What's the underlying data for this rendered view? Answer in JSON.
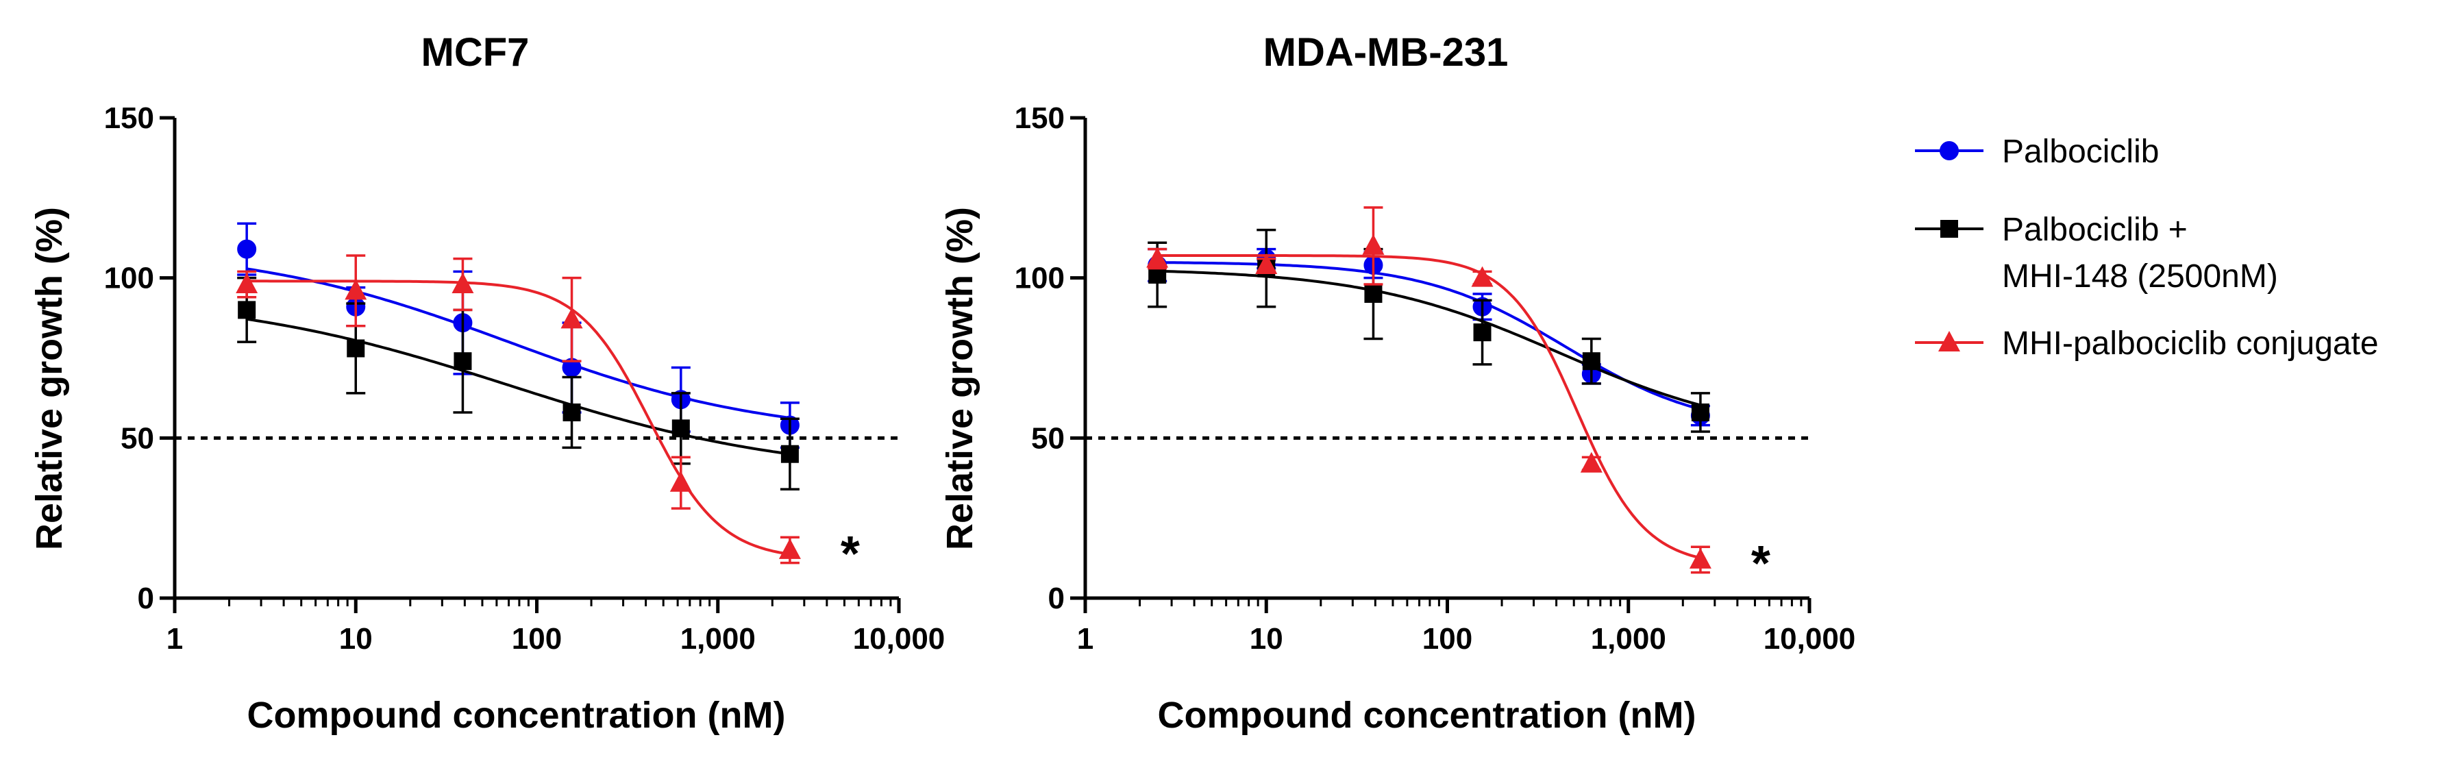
{
  "chart_data": [
    {
      "type": "line",
      "title": "MCF7",
      "xlabel": "Compound concentration (nM)",
      "ylabel": "Relative growth (%)",
      "xscale": "log",
      "xlim": [
        1,
        10000
      ],
      "ylim": [
        0,
        150
      ],
      "xticks": [
        1,
        10,
        100,
        1000,
        10000
      ],
      "xtick_labels": [
        "1",
        "10",
        "100",
        "1,000",
        "10,000"
      ],
      "yticks": [
        0,
        50,
        100,
        150
      ],
      "ytick_labels": [
        "0",
        "50",
        "100",
        "150"
      ],
      "reference_line": {
        "y": 50,
        "style": "dotted"
      },
      "annotation": {
        "text": "*",
        "x": 2500,
        "y": 15
      },
      "series": [
        {
          "name": "Palbociclib",
          "color": "#0000ee",
          "marker": "circle",
          "x": [
            2.5,
            10,
            39,
            156,
            625,
            2500
          ],
          "y": [
            109,
            91,
            86,
            72,
            62,
            54
          ],
          "err": [
            8,
            6,
            16,
            14,
            10,
            7
          ],
          "fit": {
            "top": 110,
            "bottom": 50,
            "ec50": 70,
            "hill": 0.6
          }
        },
        {
          "name": "Palbociclib + MHI-148 (2500nM)",
          "color": "#000000",
          "marker": "square",
          "x": [
            2.5,
            10,
            39,
            156,
            625,
            2500
          ],
          "y": [
            90,
            78,
            74,
            58,
            53,
            45
          ],
          "err": [
            10,
            14,
            16,
            11,
            11,
            11
          ],
          "fit": {
            "top": 95,
            "bottom": 38,
            "ec50": 70,
            "hill": 0.55
          }
        },
        {
          "name": "MHI-palbociclib conjugate",
          "color": "#e8232a",
          "marker": "triangle",
          "x": [
            2.5,
            10,
            39,
            156,
            625,
            2500
          ],
          "y": [
            98,
            96,
            98,
            87,
            36,
            15
          ],
          "err": [
            4,
            11,
            8,
            13,
            8,
            4
          ],
          "fit": {
            "top": 99,
            "bottom": 12,
            "ec50": 420,
            "hill": 2.2
          }
        }
      ]
    },
    {
      "type": "line",
      "title": "MDA-MB-231",
      "xlabel": "Compound concentration (nM)",
      "ylabel": "Relative growth (%)",
      "xscale": "log",
      "xlim": [
        1,
        10000
      ],
      "ylim": [
        0,
        150
      ],
      "xticks": [
        1,
        10,
        100,
        1000,
        10000
      ],
      "xtick_labels": [
        "1",
        "10",
        "100",
        "1,000",
        "10,000"
      ],
      "yticks": [
        0,
        50,
        100,
        150
      ],
      "ytick_labels": [
        "0",
        "50",
        "100",
        "150"
      ],
      "reference_line": {
        "y": 50,
        "style": "dotted"
      },
      "annotation": {
        "text": "*",
        "x": 2500,
        "y": 12
      },
      "series": [
        {
          "name": "Palbociclib",
          "color": "#0000ee",
          "marker": "circle",
          "x": [
            2.5,
            10,
            39,
            156,
            625,
            2500
          ],
          "y": [
            104,
            106,
            104,
            91,
            70,
            57
          ],
          "err": [
            5,
            3,
            4,
            4,
            3,
            3
          ],
          "fit": {
            "top": 105,
            "bottom": 52,
            "ec50": 450,
            "hill": 1.1
          }
        },
        {
          "name": "Palbociclib + MHI-148 (2500nM)",
          "color": "#000000",
          "marker": "square",
          "x": [
            2.5,
            10,
            39,
            156,
            625,
            2500
          ],
          "y": [
            101,
            103,
            95,
            83,
            74,
            58
          ],
          "err": [
            10,
            12,
            14,
            10,
            7,
            6
          ],
          "fit": {
            "top": 103,
            "bottom": 50,
            "ec50": 420,
            "hill": 0.8
          }
        },
        {
          "name": "MHI-palbociclib conjugate",
          "color": "#e8232a",
          "marker": "triangle",
          "x": [
            2.5,
            10,
            39,
            156,
            625,
            2500
          ],
          "y": [
            106,
            104,
            110,
            100,
            42,
            12
          ],
          "err": [
            3,
            2,
            12,
            2,
            2,
            4
          ],
          "fit": {
            "top": 107,
            "bottom": 10,
            "ec50": 520,
            "hill": 2.3
          }
        }
      ]
    }
  ],
  "legend": {
    "placement": "right",
    "entries": [
      {
        "lines": [
          "Palbociclib"
        ],
        "color": "#0000ee",
        "marker": "circle"
      },
      {
        "lines": [
          "Palbociclib +",
          "MHI-148 (2500nM)"
        ],
        "color": "#000000",
        "marker": "square"
      },
      {
        "lines": [
          "MHI-palbociclib conjugate"
        ],
        "color": "#e8232a",
        "marker": "triangle"
      }
    ]
  }
}
